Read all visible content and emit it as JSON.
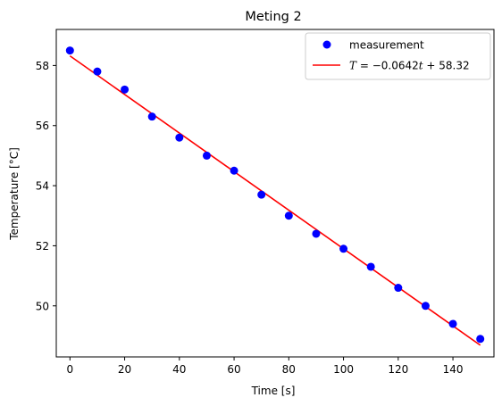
{
  "chart_data": {
    "type": "scatter",
    "title": "Meting 2",
    "xlabel": "Time [s]",
    "ylabel": "Temperature [°C]",
    "xlim": [
      -5,
      155
    ],
    "ylim": [
      48.3,
      59.2
    ],
    "xticks": [
      0,
      20,
      40,
      60,
      80,
      100,
      120,
      140
    ],
    "yticks": [
      50,
      52,
      54,
      56,
      58
    ],
    "grid": false,
    "legend_position": "top-right",
    "series": [
      {
        "name": "measurement",
        "kind": "scatter",
        "color": "#0000ff",
        "x": [
          0,
          10,
          20,
          30,
          40,
          50,
          60,
          70,
          80,
          90,
          100,
          110,
          120,
          130,
          140,
          150
        ],
        "y": [
          58.5,
          57.8,
          57.2,
          56.3,
          55.6,
          55.0,
          54.5,
          53.7,
          53.0,
          52.4,
          51.9,
          51.3,
          50.6,
          50.0,
          49.4,
          48.9
        ]
      },
      {
        "name": "T = −0.0642t + 58.32",
        "kind": "line",
        "color": "#ff0000",
        "slope": -0.0642,
        "intercept": 58.32,
        "x_range": [
          0,
          150
        ]
      }
    ],
    "legend": {
      "entries": [
        {
          "label": "measurement"
        },
        {
          "label_prefix": "T",
          "label_suffix": " = −0.0642",
          "label_var": "t",
          "label_tail": " + 58.32"
        }
      ]
    }
  }
}
